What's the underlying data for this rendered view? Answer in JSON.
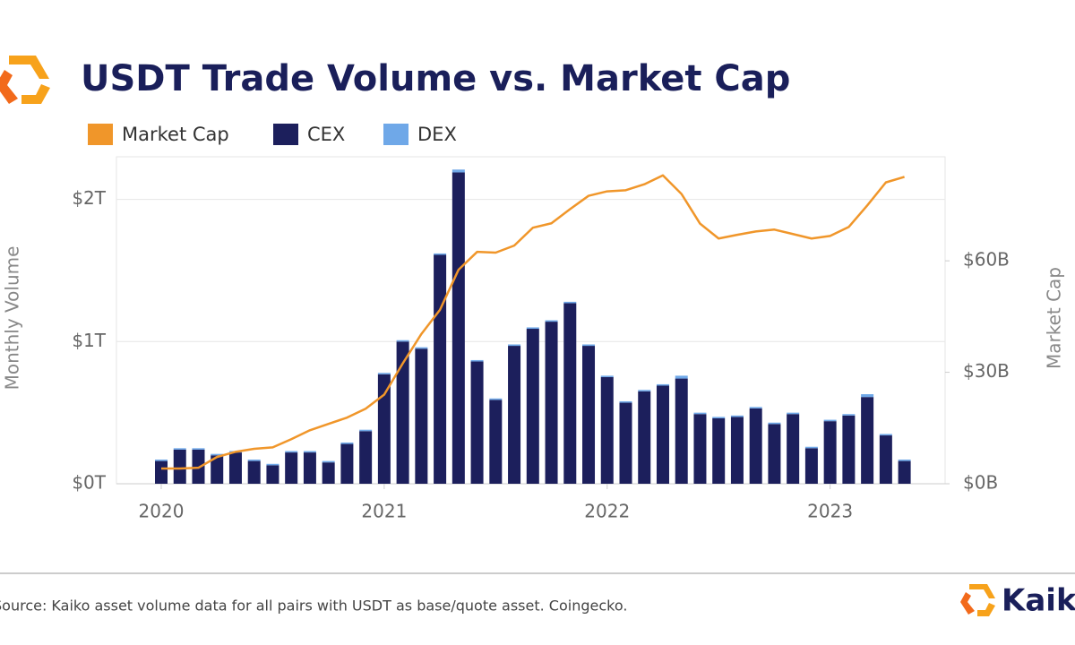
{
  "chart_data": {
    "type": "bar",
    "title": "USDT Trade Volume vs. Market Cap",
    "y_label": "Monthly Volume",
    "y2_label": "Market Cap",
    "source": "Source: Kaiko asset volume data for all pairs with USDT as base/quote asset. Coingecko.",
    "brand": "Kaiko",
    "categories": [
      "2020",
      null,
      null,
      null,
      null,
      null,
      null,
      null,
      null,
      null,
      null,
      null,
      "2021",
      null,
      null,
      null,
      null,
      null,
      null,
      null,
      null,
      null,
      null,
      null,
      "2022",
      null,
      null,
      null,
      null,
      null,
      null,
      null,
      null,
      null,
      null,
      null,
      "2023",
      null,
      null,
      null,
      null
    ],
    "series": [
      {
        "name": "Market Cap",
        "color": "#f0962a",
        "type": "line",
        "axis": "y2",
        "values": [
          4.1,
          4.1,
          4.3,
          7.2,
          8.6,
          9.4,
          9.8,
          12,
          14.4,
          16.1,
          17.8,
          20.2,
          24,
          32.4,
          40.3,
          46.8,
          57.6,
          62.4,
          62.2,
          64.1,
          68.9,
          70.1,
          73.9,
          77.5,
          78.7,
          79,
          80.6,
          83,
          78,
          70,
          66,
          67,
          67.9,
          68.4,
          67.2,
          66,
          66.7,
          69.1,
          74.9,
          81.1,
          82.6
        ]
      },
      {
        "name": "CEX",
        "color": "#1c1f5c",
        "type": "bar",
        "values": [
          0.16,
          0.24,
          0.24,
          0.2,
          0.22,
          0.16,
          0.13,
          0.22,
          0.22,
          0.15,
          0.28,
          0.37,
          0.77,
          1,
          0.95,
          1.61,
          2.19,
          0.86,
          0.59,
          0.97,
          1.09,
          1.14,
          1.27,
          0.97,
          0.75,
          0.57,
          0.65,
          0.69,
          0.74,
          0.49,
          0.46,
          0.47,
          0.53,
          0.42,
          0.49,
          0.25,
          0.44,
          0.48,
          0.61,
          0.34,
          0.16
        ]
      },
      {
        "name": "DEX",
        "color": "#6fa8e8",
        "type": "bar",
        "values": [
          0.01,
          0.01,
          0.01,
          0.01,
          0.01,
          0.01,
          0.01,
          0.01,
          0.01,
          0.01,
          0.01,
          0.01,
          0.01,
          0.01,
          0.01,
          0.01,
          0.02,
          0.01,
          0.01,
          0.01,
          0.01,
          0.01,
          0.01,
          0.01,
          0.01,
          0.01,
          0.01,
          0.01,
          0.02,
          0.01,
          0.01,
          0.01,
          0.01,
          0.01,
          0.01,
          0.01,
          0.01,
          0.01,
          0.02,
          0.01,
          0.01
        ]
      }
    ],
    "stacked": true,
    "ylim": [
      0,
      2.3
    ],
    "yticks": [
      {
        "value": 0,
        "label": "$0T"
      },
      {
        "value": 1,
        "label": "$1T"
      },
      {
        "value": 2,
        "label": "$2T"
      }
    ],
    "y2lim": [
      0,
      88
    ],
    "y2ticks": [
      {
        "value": 0,
        "label": "$0B"
      },
      {
        "value": 30,
        "label": "$30B"
      },
      {
        "value": 60,
        "label": "$60B"
      }
    ],
    "grid": true,
    "legend": "top"
  }
}
